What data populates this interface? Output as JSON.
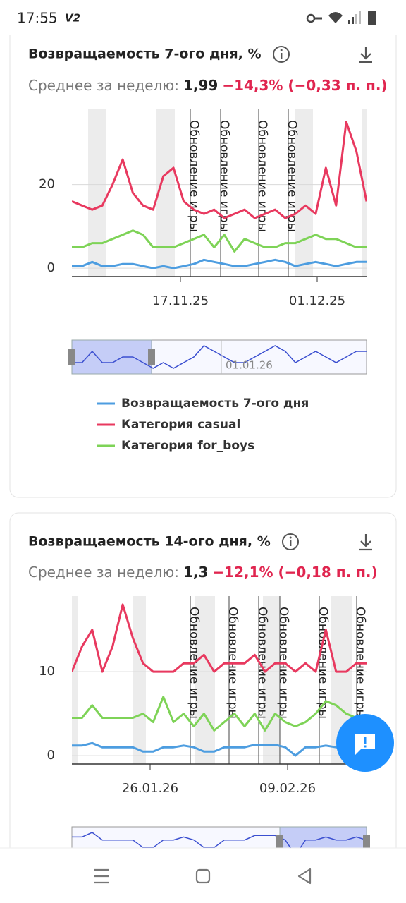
{
  "status_bar": {
    "time": "17:55",
    "badge": "V2"
  },
  "cards": [
    {
      "title": "Возвращаемость 7-ого дня, %",
      "summary": {
        "label": "Среднее за неделю:",
        "value": "1,99",
        "change": "−14,3% (−0,33 п. п.)"
      },
      "chart_data": {
        "type": "line",
        "ylim": [
          -2,
          38
        ],
        "yticks": [
          0,
          20
        ],
        "xlabels": [
          "17.11.25",
          "01.12.25"
        ],
        "annotations": [
          "Обновление игры",
          "Обновление игры",
          "Обновление игры",
          "Обновление игры"
        ],
        "navigator_label": "01.01.26",
        "series": [
          {
            "name": "Возвращаемость 7-ого дня",
            "color": "#4d9de0",
            "values": [
              0.5,
              0.5,
              1.5,
              0.5,
              0.5,
              1,
              1,
              0.5,
              0,
              0.5,
              0,
              0.5,
              1,
              2,
              1.5,
              1,
              0.5,
              0.5,
              1,
              1.5,
              2,
              1.5,
              0.5,
              1,
              1.5,
              1,
              0.5,
              1,
              1.5,
              1.5
            ]
          },
          {
            "name": "Категория casual",
            "color": "#e8395f",
            "values": [
              16,
              15,
              14,
              15,
              20,
              26,
              18,
              15,
              14,
              22,
              24,
              16,
              14,
              13,
              14,
              12,
              13,
              14,
              12,
              13,
              14,
              12,
              13,
              15,
              13,
              24,
              15,
              35,
              28,
              16
            ]
          },
          {
            "name": "Категория for_boys",
            "color": "#7ed357",
            "values": [
              5,
              5,
              6,
              6,
              7,
              8,
              9,
              8,
              5,
              5,
              5,
              6,
              7,
              8,
              5,
              8,
              4,
              7,
              6,
              5,
              5,
              6,
              6,
              7,
              8,
              7,
              7,
              6,
              5,
              5
            ]
          }
        ]
      }
    },
    {
      "title": "Возвращаемость 14-ого дня, %",
      "summary": {
        "label": "Среднее за неделю:",
        "value": "1,3",
        "change": "−12,1% (−0,18 п. п.)"
      },
      "chart_data": {
        "type": "line",
        "ylim": [
          -1,
          19
        ],
        "yticks": [
          0,
          10
        ],
        "xlabels": [
          "26.01.26",
          "09.02.26"
        ],
        "annotations": [
          "Обновление игры",
          "Обновление игры",
          "Обновление игры",
          "Обновление игры",
          "Обновление игры",
          "Обновление игры"
        ],
        "series": [
          {
            "color": "#4d9de0",
            "values": [
              1.2,
              1.2,
              1.5,
              1,
              1,
              1,
              1,
              0.5,
              0.5,
              1,
              1,
              1.2,
              1,
              0.5,
              0.5,
              1,
              1,
              1,
              1.3,
              1.3,
              1.3,
              1,
              0,
              1,
              1,
              1.2,
              1,
              1,
              1.2,
              1
            ]
          },
          {
            "color": "#e8395f",
            "values": [
              10,
              13,
              15,
              10,
              13,
              18,
              14,
              11,
              10,
              10,
              10,
              11,
              11,
              12,
              10,
              11,
              11,
              11,
              12,
              10,
              11,
              11,
              10,
              11,
              10,
              15,
              10,
              10,
              11,
              11
            ]
          },
          {
            "color": "#7ed357",
            "values": [
              4.5,
              4.5,
              6,
              4.5,
              4.5,
              4.5,
              4.5,
              5,
              4,
              7,
              4,
              5,
              3.5,
              5,
              3,
              4,
              5,
              3.5,
              5,
              3,
              5,
              4,
              3.5,
              4,
              5,
              6.5,
              6,
              5,
              4.5,
              4.5
            ]
          }
        ]
      }
    }
  ]
}
